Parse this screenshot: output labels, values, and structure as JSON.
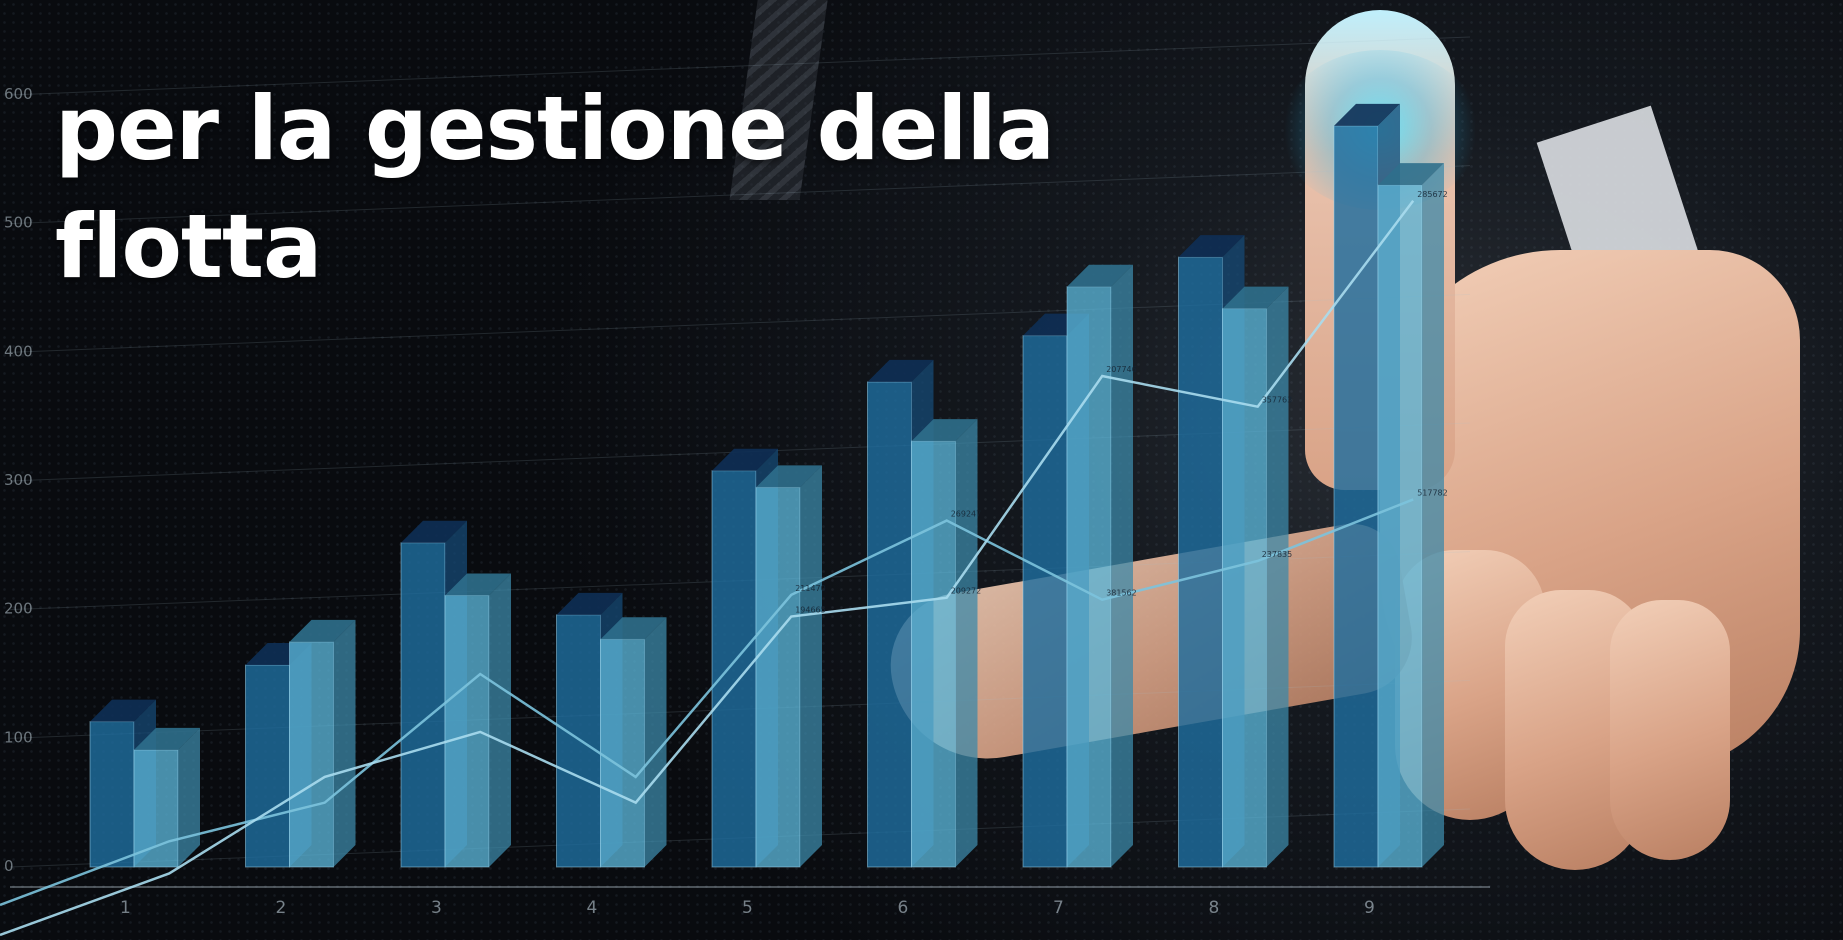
{
  "headline": {
    "line1": "per la gestione della",
    "line2": "flotta"
  },
  "chart_data": {
    "type": "bar",
    "categories": [
      "1",
      "2",
      "3",
      "4",
      "5",
      "6",
      "7",
      "8",
      "9"
    ],
    "series": [
      {
        "values": [
          113000,
          157000,
          252000,
          196000,
          308000,
          377000,
          413000,
          474000,
          576000
        ],
        "color": "#1f6c9e"
      },
      {
        "values": [
          91000,
          175000,
          211000,
          177000,
          295000,
          331000,
          451000,
          434000,
          530000
        ],
        "color": "#5ab3d6"
      }
    ],
    "lines": [
      {
        "values": [
          20000,
          50000,
          150000,
          70000,
          211470,
          269247,
          207746,
          237835,
          285672
        ],
        "color": "#7cc3dd"
      },
      {
        "values": [
          -5000,
          70000,
          105000,
          50000,
          194665,
          209272,
          381562,
          357763,
          517782
        ],
        "color": "#a9dcee"
      }
    ],
    "point_labels": [
      {
        "index": 4,
        "text": "211470"
      },
      {
        "index": 4,
        "text": "194665"
      },
      {
        "index": 5,
        "text": "269247"
      },
      {
        "index": 5,
        "text": "209272"
      },
      {
        "index": 6,
        "text": "381562"
      },
      {
        "index": 6,
        "text": "207746"
      },
      {
        "index": 7,
        "text": "237835"
      },
      {
        "index": 7,
        "text": "357763"
      },
      {
        "index": 8,
        "text": "517782"
      },
      {
        "index": 8,
        "text": "285672"
      }
    ],
    "ylim": [
      0,
      600000
    ],
    "y_ticks": [
      "0",
      "100",
      "200",
      "300",
      "400",
      "500",
      "600"
    ],
    "grid": true
  }
}
